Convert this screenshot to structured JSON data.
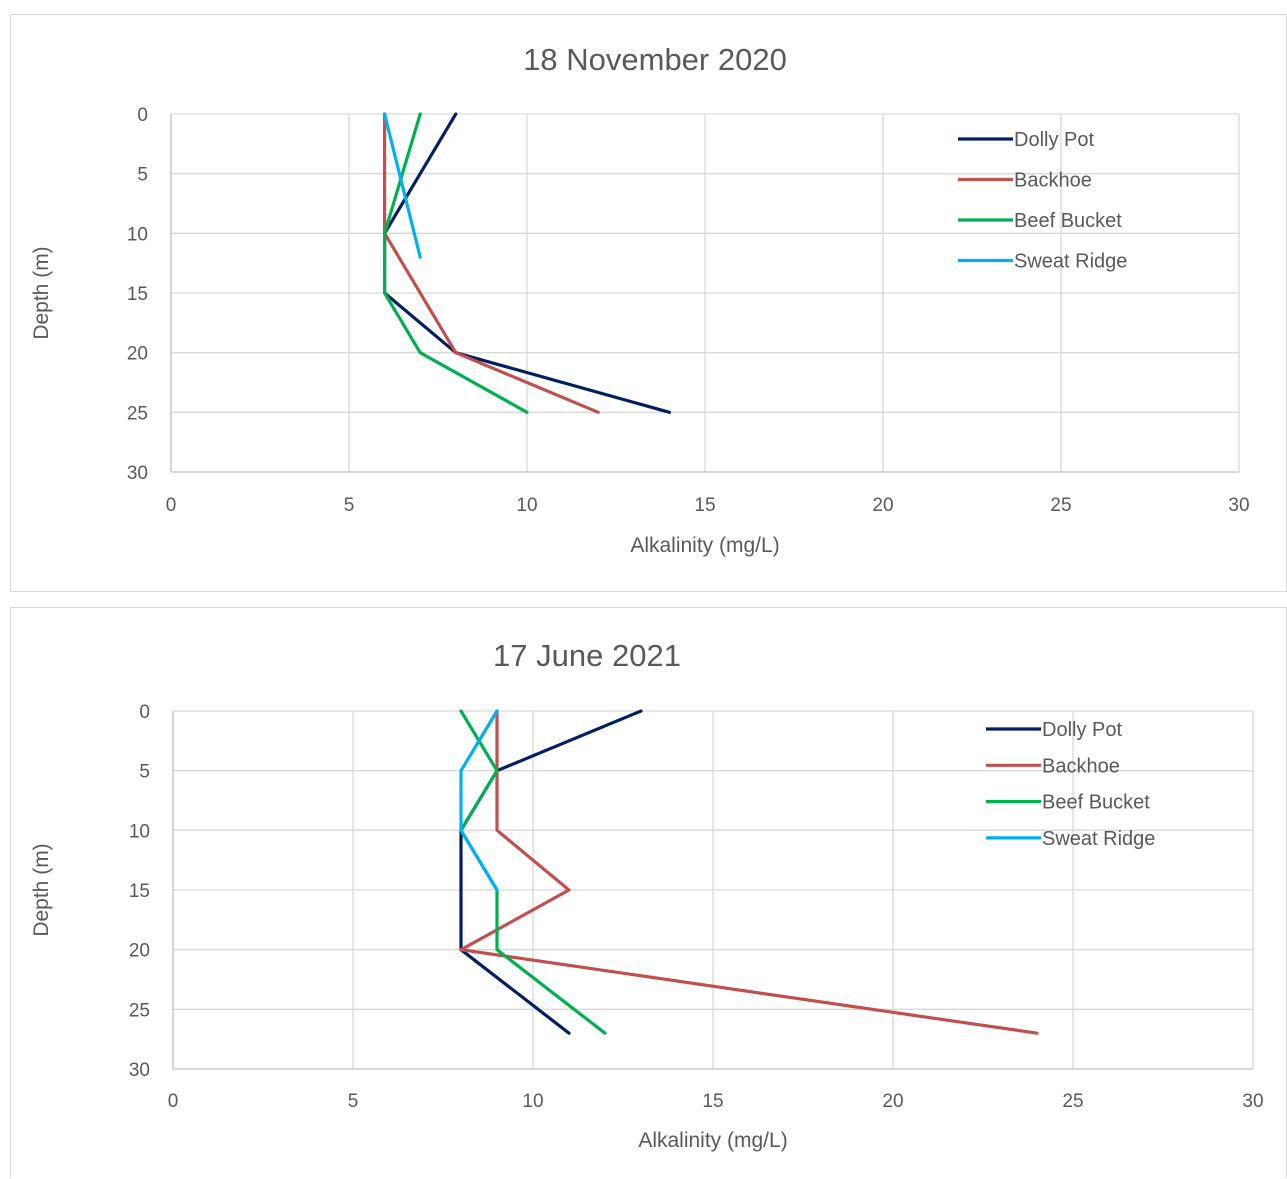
{
  "chart_data": [
    {
      "type": "line",
      "title": "18 November 2020",
      "xlabel": "Alkalinity (mg/L)",
      "ylabel": "Depth (m)",
      "xlim": [
        0,
        30
      ],
      "ylim": [
        0,
        30
      ],
      "y_inverted": true,
      "x_ticks": [
        "0",
        "5",
        "10",
        "15",
        "20",
        "25",
        "30"
      ],
      "y_ticks": [
        "0",
        "5",
        "10",
        "15",
        "20",
        "25",
        "30"
      ],
      "grid": true,
      "legend_position": "top-right",
      "series": [
        {
          "name": "Dolly Pot",
          "color": "#002060",
          "points": [
            [
              8,
              0
            ],
            [
              6,
              10
            ],
            [
              6,
              15
            ],
            [
              8,
              20
            ],
            [
              14,
              25
            ]
          ]
        },
        {
          "name": "Backhoe",
          "color": "#c0504d",
          "points": [
            [
              6,
              0
            ],
            [
              6,
              10
            ],
            [
              8,
              20
            ],
            [
              12,
              25
            ]
          ]
        },
        {
          "name": "Beef Bucket",
          "color": "#00b050",
          "points": [
            [
              7,
              0
            ],
            [
              6,
              10
            ],
            [
              6,
              15
            ],
            [
              7,
              20
            ],
            [
              10,
              25
            ]
          ]
        },
        {
          "name": "Sweat Ridge",
          "color": "#00b0f0",
          "points": [
            [
              6,
              0
            ],
            [
              7,
              12
            ]
          ]
        }
      ]
    },
    {
      "type": "line",
      "title": "17 June 2021",
      "xlabel": "Alkalinity (mg/L)",
      "ylabel": "Depth (m)",
      "xlim": [
        0,
        30
      ],
      "ylim": [
        0,
        30
      ],
      "y_inverted": true,
      "x_ticks": [
        "0",
        "5",
        "10",
        "15",
        "20",
        "25",
        "30"
      ],
      "y_ticks": [
        "0",
        "5",
        "10",
        "15",
        "20",
        "25",
        "30"
      ],
      "grid": true,
      "legend_position": "top-right",
      "series": [
        {
          "name": "Dolly Pot",
          "color": "#002060",
          "points": [
            [
              13,
              0
            ],
            [
              9,
              5
            ],
            [
              8,
              10
            ],
            [
              8,
              15
            ],
            [
              8,
              20
            ],
            [
              11,
              27
            ]
          ]
        },
        {
          "name": "Backhoe",
          "color": "#c0504d",
          "points": [
            [
              9,
              0
            ],
            [
              9,
              5
            ],
            [
              9,
              10
            ],
            [
              11,
              15
            ],
            [
              8,
              20
            ],
            [
              24,
              27
            ]
          ]
        },
        {
          "name": "Beef Bucket",
          "color": "#00b050",
          "points": [
            [
              8,
              0
            ],
            [
              9,
              5
            ],
            [
              8,
              10
            ],
            [
              9,
              15
            ],
            [
              9,
              20
            ],
            [
              12,
              27
            ]
          ]
        },
        {
          "name": "Sweat Ridge",
          "color": "#00b0f0",
          "points": [
            [
              9,
              0
            ],
            [
              8,
              5
            ],
            [
              8,
              10
            ],
            [
              9,
              15
            ]
          ]
        }
      ]
    }
  ]
}
